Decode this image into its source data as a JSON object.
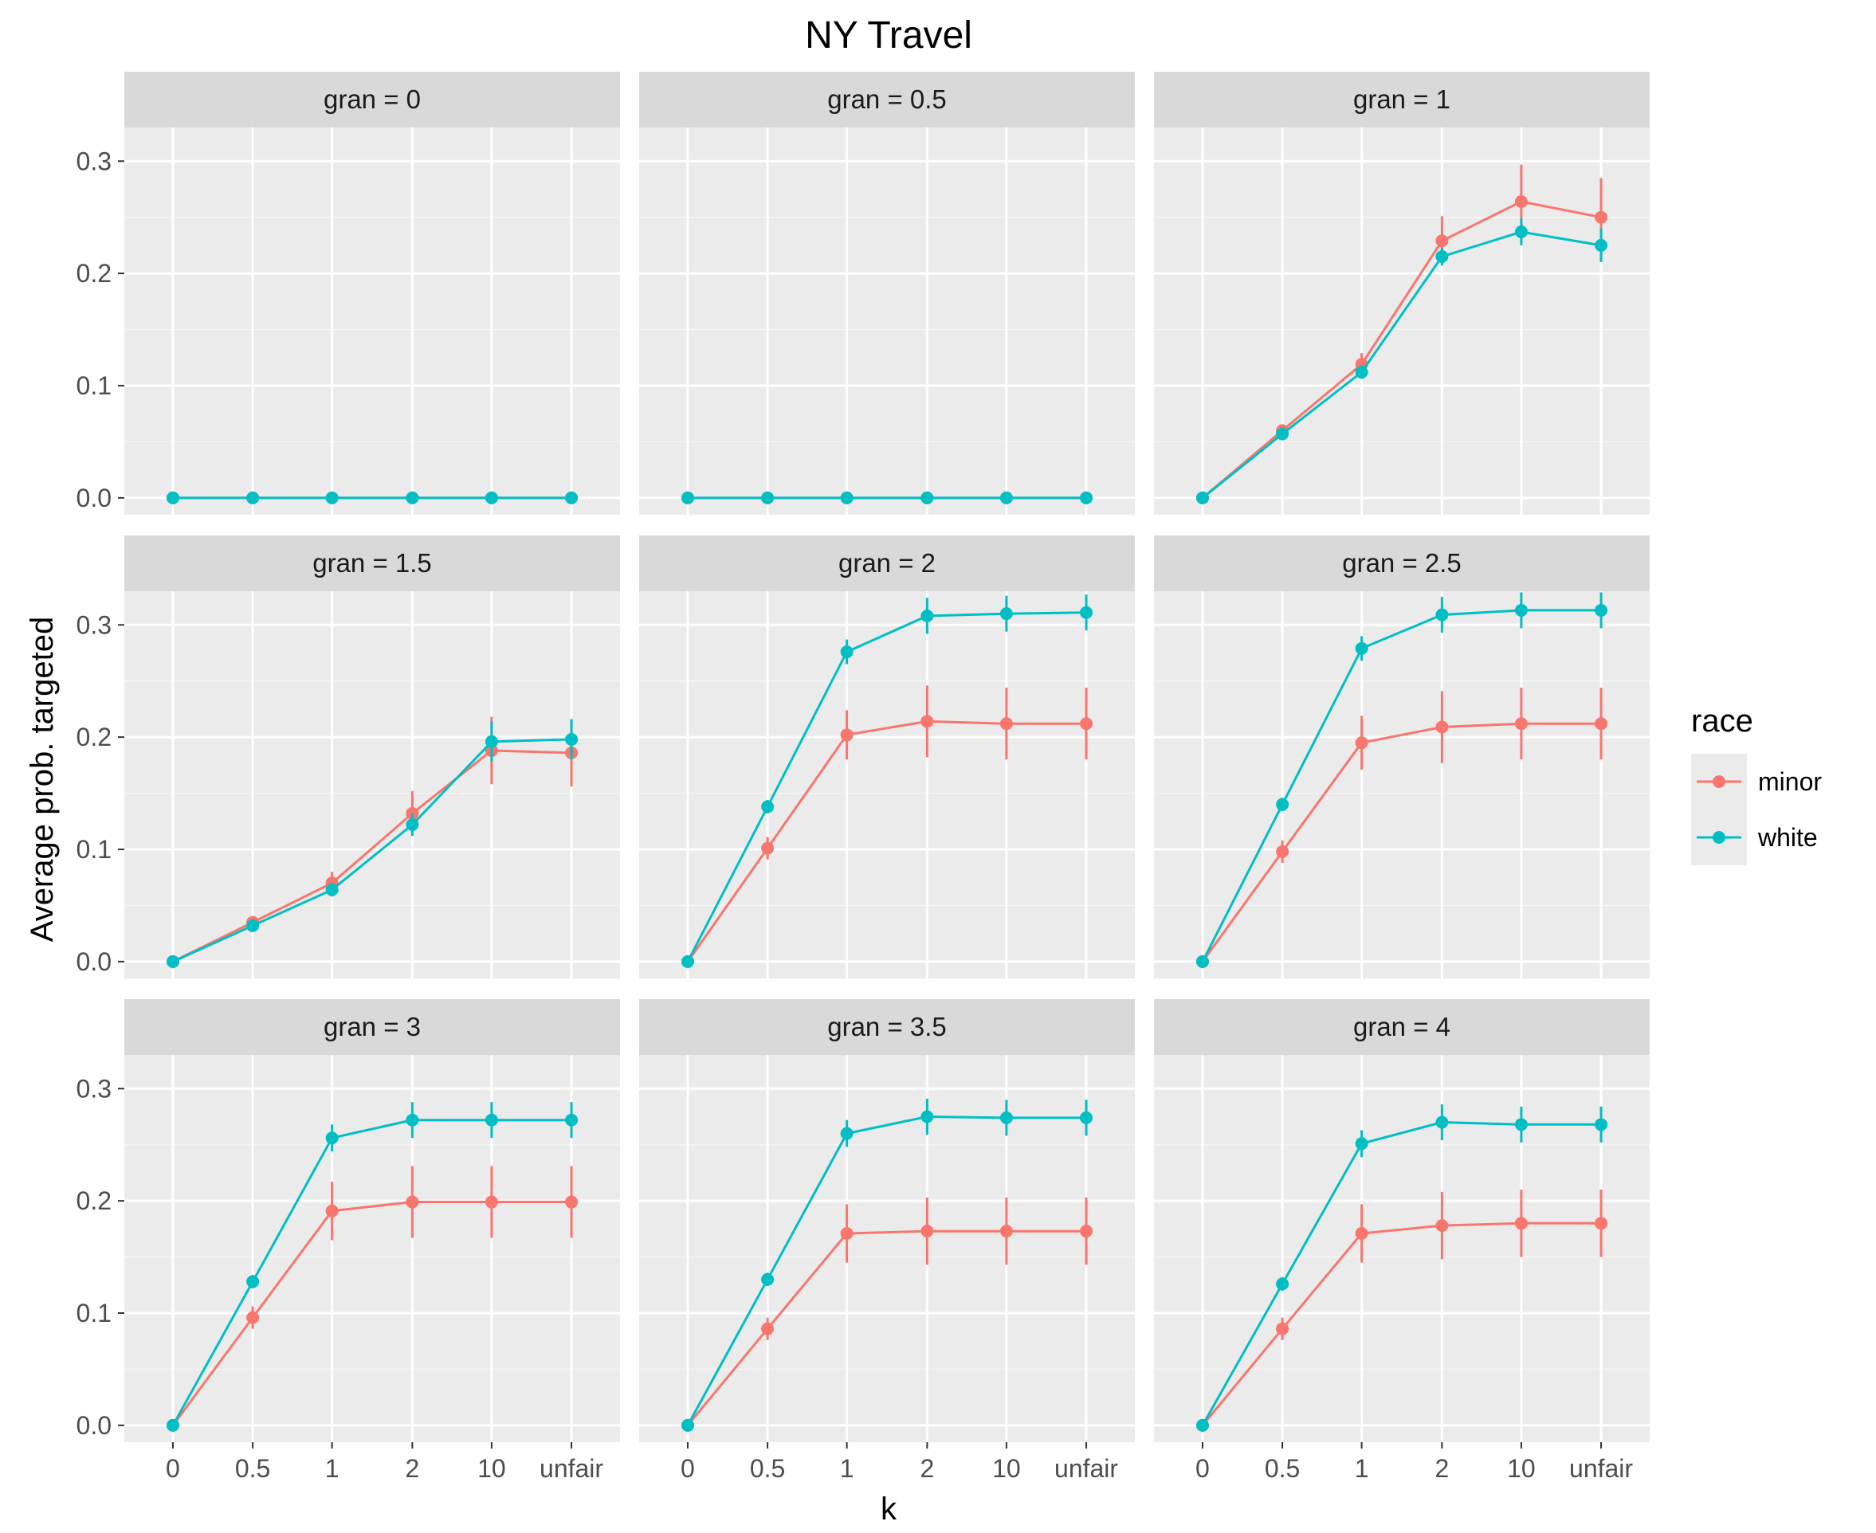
{
  "chart_data": {
    "type": "line",
    "title": "NY Travel",
    "xlabel": "k",
    "ylabel": "Average prob. targeted",
    "facet_label_prefix": "gran = ",
    "categories": [
      "0",
      "0.5",
      "1",
      "2",
      "10",
      "unfair"
    ],
    "yticks": [
      "0.0",
      "0.1",
      "0.2",
      "0.3"
    ],
    "ylim": [
      -0.015,
      0.33
    ],
    "grid": true,
    "legend": {
      "title": "race",
      "position": "right",
      "entries": [
        {
          "name": "minor",
          "color": "#F8766D"
        },
        {
          "name": "white",
          "color": "#00BFC4"
        }
      ]
    },
    "facets": [
      {
        "gran": "0",
        "series": [
          {
            "name": "minor",
            "values": [
              0,
              0,
              0,
              0,
              0,
              0
            ],
            "err": [
              0,
              0,
              0,
              0,
              0,
              0
            ]
          },
          {
            "name": "white",
            "values": [
              0,
              0,
              0,
              0,
              0,
              0
            ],
            "err": [
              0,
              0,
              0,
              0,
              0,
              0
            ]
          }
        ]
      },
      {
        "gran": "0.5",
        "series": [
          {
            "name": "minor",
            "values": [
              0,
              0,
              0,
              0,
              0,
              0
            ],
            "err": [
              0,
              0,
              0,
              0,
              0,
              0
            ]
          },
          {
            "name": "white",
            "values": [
              0,
              0,
              0,
              0,
              0,
              0
            ],
            "err": [
              0,
              0,
              0,
              0,
              0,
              0
            ]
          }
        ]
      },
      {
        "gran": "1",
        "series": [
          {
            "name": "minor",
            "values": [
              0,
              0.06,
              0.119,
              0.229,
              0.264,
              0.25
            ],
            "err": [
              0,
              0.004,
              0.01,
              0.022,
              0.033,
              0.035
            ]
          },
          {
            "name": "white",
            "values": [
              0,
              0.057,
              0.112,
              0.215,
              0.237,
              0.225
            ],
            "err": [
              0,
              0.003,
              0.006,
              0.008,
              0.012,
              0.015
            ]
          }
        ]
      },
      {
        "gran": "1.5",
        "series": [
          {
            "name": "minor",
            "values": [
              0,
              0.035,
              0.07,
              0.132,
              0.188,
              0.186
            ],
            "err": [
              0,
              0.004,
              0.01,
              0.02,
              0.03,
              0.03
            ]
          },
          {
            "name": "white",
            "values": [
              0,
              0.032,
              0.064,
              0.122,
              0.196,
              0.198
            ],
            "err": [
              0,
              0.003,
              0.006,
              0.01,
              0.018,
              0.018
            ]
          }
        ]
      },
      {
        "gran": "2",
        "series": [
          {
            "name": "minor",
            "values": [
              0,
              0.101,
              0.202,
              0.214,
              0.212,
              0.212
            ],
            "err": [
              0,
              0.01,
              0.022,
              0.032,
              0.032,
              0.032
            ]
          },
          {
            "name": "white",
            "values": [
              0,
              0.138,
              0.276,
              0.308,
              0.31,
              0.311
            ],
            "err": [
              0,
              0.006,
              0.011,
              0.016,
              0.016,
              0.016
            ]
          }
        ]
      },
      {
        "gran": "2.5",
        "series": [
          {
            "name": "minor",
            "values": [
              0,
              0.098,
              0.195,
              0.209,
              0.212,
              0.212
            ],
            "err": [
              0,
              0.01,
              0.024,
              0.032,
              0.032,
              0.032
            ]
          },
          {
            "name": "white",
            "values": [
              0,
              0.14,
              0.279,
              0.309,
              0.313,
              0.313
            ],
            "err": [
              0,
              0.006,
              0.011,
              0.016,
              0.016,
              0.016
            ]
          }
        ]
      },
      {
        "gran": "3",
        "series": [
          {
            "name": "minor",
            "values": [
              0,
              0.096,
              0.191,
              0.199,
              0.199,
              0.199
            ],
            "err": [
              0,
              0.01,
              0.026,
              0.032,
              0.032,
              0.032
            ]
          },
          {
            "name": "white",
            "values": [
              0,
              0.128,
              0.256,
              0.272,
              0.272,
              0.272
            ],
            "err": [
              0,
              0.006,
              0.012,
              0.016,
              0.016,
              0.016
            ]
          }
        ]
      },
      {
        "gran": "3.5",
        "series": [
          {
            "name": "minor",
            "values": [
              0,
              0.086,
              0.171,
              0.173,
              0.173,
              0.173
            ],
            "err": [
              0,
              0.01,
              0.026,
              0.03,
              0.03,
              0.03
            ]
          },
          {
            "name": "white",
            "values": [
              0,
              0.13,
              0.26,
              0.275,
              0.274,
              0.274
            ],
            "err": [
              0,
              0.006,
              0.012,
              0.016,
              0.016,
              0.016
            ]
          }
        ]
      },
      {
        "gran": "4",
        "series": [
          {
            "name": "minor",
            "values": [
              0,
              0.086,
              0.171,
              0.178,
              0.18,
              0.18
            ],
            "err": [
              0,
              0.01,
              0.026,
              0.03,
              0.03,
              0.03
            ]
          },
          {
            "name": "white",
            "values": [
              0,
              0.126,
              0.251,
              0.27,
              0.268,
              0.268
            ],
            "err": [
              0,
              0.006,
              0.012,
              0.016,
              0.016,
              0.016
            ]
          }
        ]
      }
    ]
  }
}
